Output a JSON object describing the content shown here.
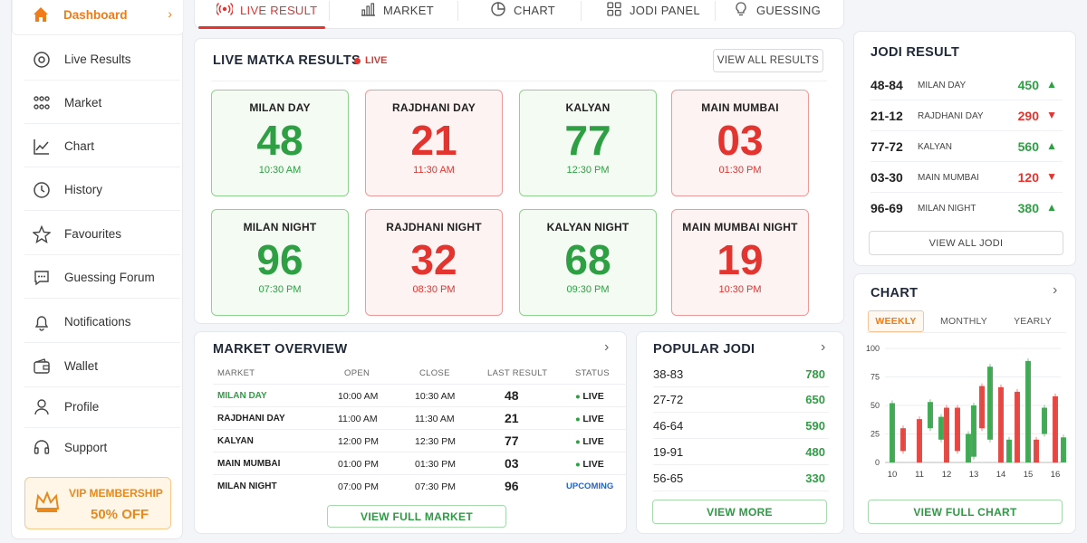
{
  "sidebar": {
    "items": [
      {
        "label": "Dashboard",
        "icon": "home-icon"
      },
      {
        "label": "Live Results",
        "icon": "record-icon"
      },
      {
        "label": "Market",
        "icon": "market-icon"
      },
      {
        "label": "Chart",
        "icon": "chart-icon"
      },
      {
        "label": "History",
        "icon": "clock-icon"
      },
      {
        "label": "Favourites",
        "icon": "star-icon"
      },
      {
        "label": "Guessing Forum",
        "icon": "chat-icon"
      },
      {
        "label": "Notifications",
        "icon": "bell-icon"
      },
      {
        "label": "Wallet",
        "icon": "wallet-icon"
      },
      {
        "label": "Profile",
        "icon": "user-icon"
      },
      {
        "label": "Support",
        "icon": "headset-icon"
      }
    ],
    "vip": {
      "title": "VIP MEMBERSHIP",
      "offer": "50% OFF"
    }
  },
  "tabs": [
    {
      "label": "LIVE RESULT",
      "icon": "broadcast-icon"
    },
    {
      "label": "MARKET",
      "icon": "bars-icon"
    },
    {
      "label": "CHART",
      "icon": "pie-icon"
    },
    {
      "label": "JODI PANEL",
      "icon": "grid-icon"
    },
    {
      "label": "GUESSING",
      "icon": "bulb-icon"
    }
  ],
  "live": {
    "title": "LIVE MATKA RESULTS",
    "badge": "LIVE",
    "view_all": "VIEW ALL RESULTS",
    "results": [
      {
        "name": "MILAN DAY",
        "number": "48",
        "time": "10:30 AM",
        "color": "green"
      },
      {
        "name": "RAJDHANI DAY",
        "number": "21",
        "time": "11:30 AM",
        "color": "red"
      },
      {
        "name": "KALYAN",
        "number": "77",
        "time": "12:30 PM",
        "color": "green"
      },
      {
        "name": "MAIN MUMBAI",
        "number": "03",
        "time": "01:30 PM",
        "color": "red"
      },
      {
        "name": "MILAN NIGHT",
        "number": "96",
        "time": "07:30 PM",
        "color": "green"
      },
      {
        "name": "RAJDHANI NIGHT",
        "number": "32",
        "time": "08:30 PM",
        "color": "red"
      },
      {
        "name": "KALYAN NIGHT",
        "number": "68",
        "time": "09:30 PM",
        "color": "green"
      },
      {
        "name": "MAIN MUMBAI NIGHT",
        "number": "19",
        "time": "10:30 PM",
        "color": "red"
      }
    ]
  },
  "market_overview": {
    "title": "MARKET OVERVIEW",
    "headers": [
      "MARKET",
      "OPEN",
      "CLOSE",
      "LAST RESULT",
      "STATUS"
    ],
    "rows": [
      {
        "market": "MILAN DAY",
        "open": "10:00 AM",
        "close": "10:30 AM",
        "result": "48",
        "status": "LIVE"
      },
      {
        "market": "RAJDHANI DAY",
        "open": "11:00 AM",
        "close": "11:30 AM",
        "result": "21",
        "status": "LIVE"
      },
      {
        "market": "KALYAN",
        "open": "12:00 PM",
        "close": "12:30 PM",
        "result": "77",
        "status": "LIVE"
      },
      {
        "market": "MAIN MUMBAI",
        "open": "01:00 PM",
        "close": "01:30 PM",
        "result": "03",
        "status": "LIVE"
      },
      {
        "market": "MILAN NIGHT",
        "open": "07:00 PM",
        "close": "07:30 PM",
        "result": "96",
        "status": "UPCOMING"
      }
    ],
    "button": "VIEW FULL MARKET"
  },
  "popular_jodi": {
    "title": "POPULAR JODI",
    "rows": [
      {
        "pair": "38-83",
        "value": "780"
      },
      {
        "pair": "27-72",
        "value": "650"
      },
      {
        "pair": "46-64",
        "value": "590"
      },
      {
        "pair": "19-91",
        "value": "480"
      },
      {
        "pair": "56-65",
        "value": "330"
      }
    ],
    "button": "VIEW MORE"
  },
  "jodi_result": {
    "title": "JODI RESULT",
    "rows": [
      {
        "pair": "48-84",
        "market": "MILAN DAY",
        "value": "450",
        "trend": "up"
      },
      {
        "pair": "21-12",
        "market": "RAJDHANI DAY",
        "value": "290",
        "trend": "down"
      },
      {
        "pair": "77-72",
        "market": "KALYAN",
        "value": "560",
        "trend": "up"
      },
      {
        "pair": "03-30",
        "market": "MAIN MUMBAI",
        "value": "120",
        "trend": "down"
      },
      {
        "pair": "96-69",
        "market": "MILAN NIGHT",
        "value": "380",
        "trend": "up"
      }
    ],
    "button": "VIEW ALL JODI"
  },
  "chart": {
    "title": "CHART",
    "tabs": [
      "WEEKLY",
      "MONTHLY",
      "YEARLY"
    ],
    "button": "VIEW FULL CHART"
  },
  "colors": {
    "green": "#2ea043",
    "red": "#e3342f",
    "orange": "#f07b18"
  },
  "chart_data": {
    "type": "bar",
    "ylim": [
      0,
      100
    ],
    "yticks": [
      0,
      25,
      50,
      75,
      100
    ],
    "categories": [
      "10",
      "11",
      "12",
      "13",
      "14",
      "15",
      "16"
    ],
    "series": [
      {
        "color": "green",
        "bars": [
          [
            52,
            0
          ],
          [
            53,
            0
          ],
          [
            48,
            0
          ],
          [
            84,
            0
          ],
          [
            88,
            0
          ],
          [
            48,
            0
          ],
          [
            20,
            0
          ]
        ]
      },
      {
        "color": "red",
        "bars": [
          [
            28,
            0
          ],
          [
            38,
            0
          ],
          [
            40,
            0
          ],
          [
            67,
            0
          ],
          [
            66,
            0
          ],
          [
            57,
            0
          ],
          [
            22,
            0
          ]
        ]
      }
    ],
    "candles": [
      {
        "x": 0,
        "c": "green",
        "lo": 0,
        "hi": 52
      },
      {
        "x": 0.4,
        "c": "red",
        "lo": 10,
        "hi": 30
      },
      {
        "x": 1,
        "c": "red",
        "lo": 0,
        "hi": 38
      },
      {
        "x": 1.4,
        "c": "green",
        "lo": 30,
        "hi": 53
      },
      {
        "x": 1.8,
        "c": "green",
        "lo": 20,
        "hi": 40
      },
      {
        "x": 2,
        "c": "red",
        "lo": 0,
        "hi": 48
      },
      {
        "x": 2.4,
        "c": "red",
        "lo": 10,
        "hi": 48
      },
      {
        "x": 2.8,
        "c": "green",
        "lo": 0,
        "hi": 25
      },
      {
        "x": 3,
        "c": "green",
        "lo": 5,
        "hi": 50
      },
      {
        "x": 3.3,
        "c": "red",
        "lo": 30,
        "hi": 67
      },
      {
        "x": 3.6,
        "c": "green",
        "lo": 20,
        "hi": 84
      },
      {
        "x": 4,
        "c": "red",
        "lo": 0,
        "hi": 66
      },
      {
        "x": 4.3,
        "c": "green",
        "lo": 0,
        "hi": 20
      },
      {
        "x": 4.6,
        "c": "red",
        "lo": 0,
        "hi": 62
      },
      {
        "x": 5,
        "c": "green",
        "lo": 0,
        "hi": 89
      },
      {
        "x": 5.3,
        "c": "red",
        "lo": 0,
        "hi": 20
      },
      {
        "x": 5.6,
        "c": "green",
        "lo": 25,
        "hi": 48
      },
      {
        "x": 6,
        "c": "red",
        "lo": 0,
        "hi": 58
      },
      {
        "x": 6.3,
        "c": "green",
        "lo": 0,
        "hi": 22
      }
    ]
  }
}
